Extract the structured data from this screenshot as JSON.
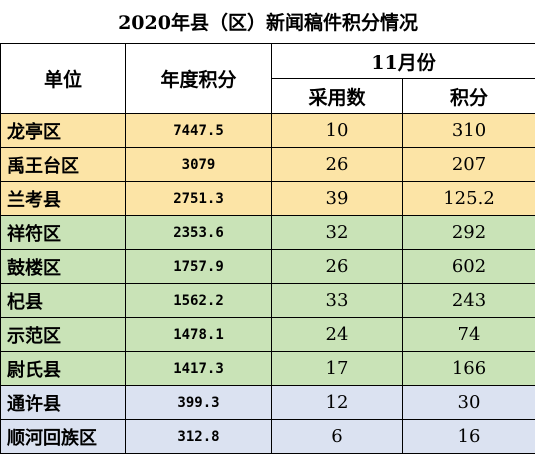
{
  "title": "2020年县（区）新闻稿件积分情况",
  "headers": {
    "unit": "单位",
    "annual_score": "年度积分",
    "month": "11月份",
    "adopted": "采用数",
    "score": "积分"
  },
  "colors": {
    "yellow": "#fce4a6",
    "green": "#c9e3b7",
    "blue": "#dbe2f1"
  },
  "rows": [
    {
      "name": "龙亭区",
      "annual": "7447.5",
      "adopted": "10",
      "score": "310",
      "group": "yellow"
    },
    {
      "name": "禹王台区",
      "annual": "3079",
      "adopted": "26",
      "score": "207",
      "group": "yellow"
    },
    {
      "name": "兰考县",
      "annual": "2751.3",
      "adopted": "39",
      "score": "125.2",
      "group": "yellow"
    },
    {
      "name": "祥符区",
      "annual": "2353.6",
      "adopted": "32",
      "score": "292",
      "group": "green"
    },
    {
      "name": "鼓楼区",
      "annual": "1757.9",
      "adopted": "26",
      "score": "602",
      "group": "green"
    },
    {
      "name": "杞县",
      "annual": "1562.2",
      "adopted": "33",
      "score": "243",
      "group": "green"
    },
    {
      "name": "示范区",
      "annual": "1478.1",
      "adopted": "24",
      "score": "74",
      "group": "green"
    },
    {
      "name": "尉氏县",
      "annual": "1417.3",
      "adopted": "17",
      "score": "166",
      "group": "green"
    },
    {
      "name": "通许县",
      "annual": "399.3",
      "adopted": "12",
      "score": "30",
      "group": "blue"
    },
    {
      "name": "顺河回族区",
      "annual": "312.8",
      "adopted": "6",
      "score": "16",
      "group": "blue"
    }
  ]
}
